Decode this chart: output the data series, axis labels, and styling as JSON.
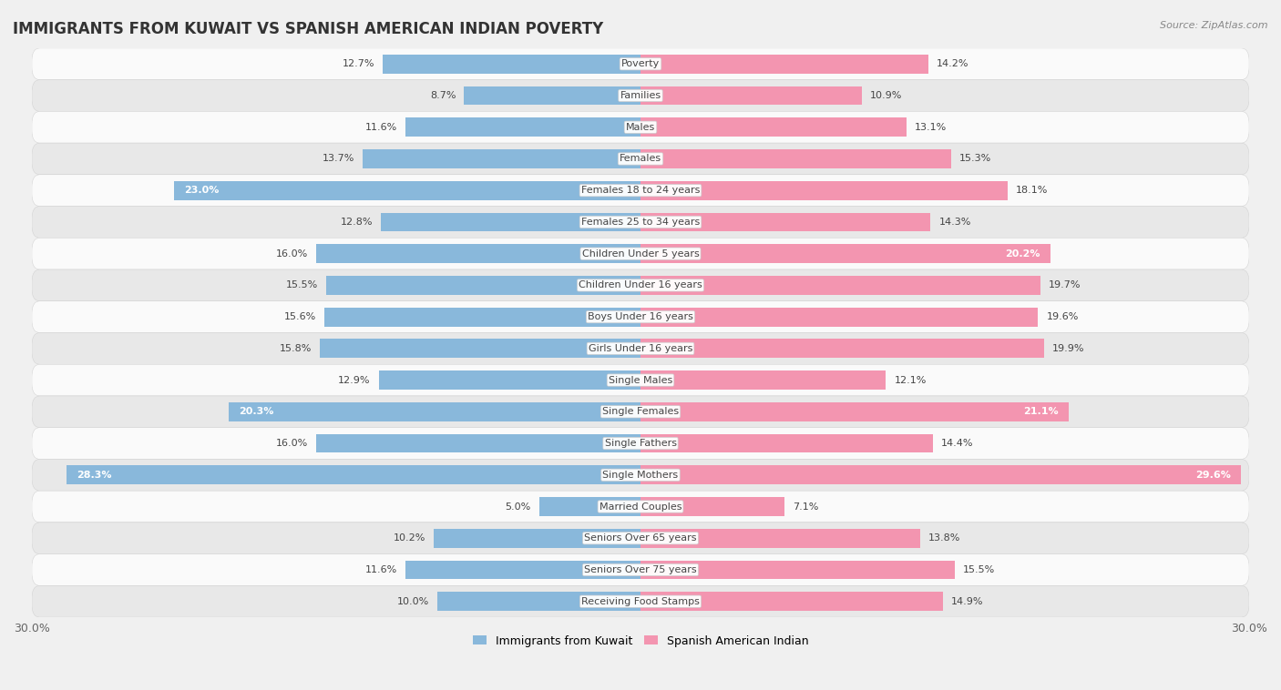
{
  "title": "IMMIGRANTS FROM KUWAIT VS SPANISH AMERICAN INDIAN POVERTY",
  "source": "Source: ZipAtlas.com",
  "categories": [
    "Poverty",
    "Families",
    "Males",
    "Females",
    "Females 18 to 24 years",
    "Females 25 to 34 years",
    "Children Under 5 years",
    "Children Under 16 years",
    "Boys Under 16 years",
    "Girls Under 16 years",
    "Single Males",
    "Single Females",
    "Single Fathers",
    "Single Mothers",
    "Married Couples",
    "Seniors Over 65 years",
    "Seniors Over 75 years",
    "Receiving Food Stamps"
  ],
  "kuwait_values": [
    12.7,
    8.7,
    11.6,
    13.7,
    23.0,
    12.8,
    16.0,
    15.5,
    15.6,
    15.8,
    12.9,
    20.3,
    16.0,
    28.3,
    5.0,
    10.2,
    11.6,
    10.0
  ],
  "spanish_values": [
    14.2,
    10.9,
    13.1,
    15.3,
    18.1,
    14.3,
    20.2,
    19.7,
    19.6,
    19.9,
    12.1,
    21.1,
    14.4,
    29.6,
    7.1,
    13.8,
    15.5,
    14.9
  ],
  "kuwait_color": "#89b8db",
  "spanish_color": "#f395b0",
  "kuwait_label": "Immigrants from Kuwait",
  "spanish_label": "Spanish American Indian",
  "axis_limit": 30.0,
  "background_color": "#f0f0f0",
  "row_even_color": "#fafafa",
  "row_odd_color": "#e8e8e8",
  "title_fontsize": 12,
  "label_fontsize": 8,
  "value_fontsize": 8,
  "bar_height": 0.6,
  "inner_value_threshold": 20.0
}
